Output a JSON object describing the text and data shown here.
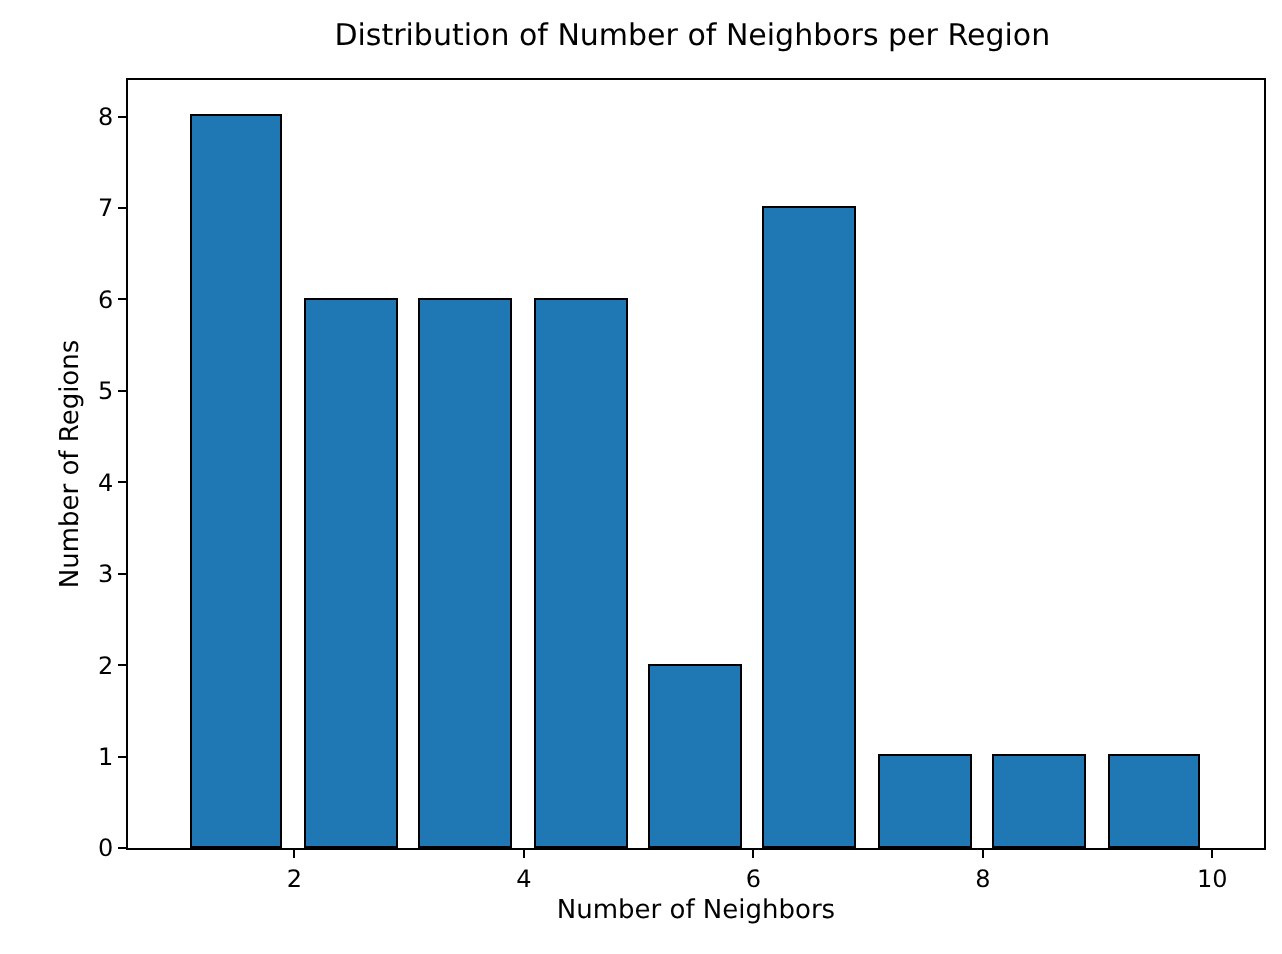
{
  "chart_data": {
    "type": "histogram",
    "title": "Distribution of Number of Neighbors per Region",
    "xlabel": "Number of Neighbors",
    "ylabel": "Number of Regions",
    "bins": [
      1,
      2,
      3,
      4,
      5,
      6,
      7,
      8,
      9,
      10
    ],
    "values": [
      8,
      6,
      6,
      6,
      2,
      7,
      1,
      1,
      1
    ],
    "color": "#1f77b4",
    "xlim": [
      0.55,
      10.45
    ],
    "xticks": [
      2,
      4,
      6,
      8,
      10
    ],
    "ylim": [
      0,
      8.4
    ],
    "yticks": [
      0,
      1,
      2,
      3,
      4,
      5,
      6,
      7,
      8
    ]
  }
}
